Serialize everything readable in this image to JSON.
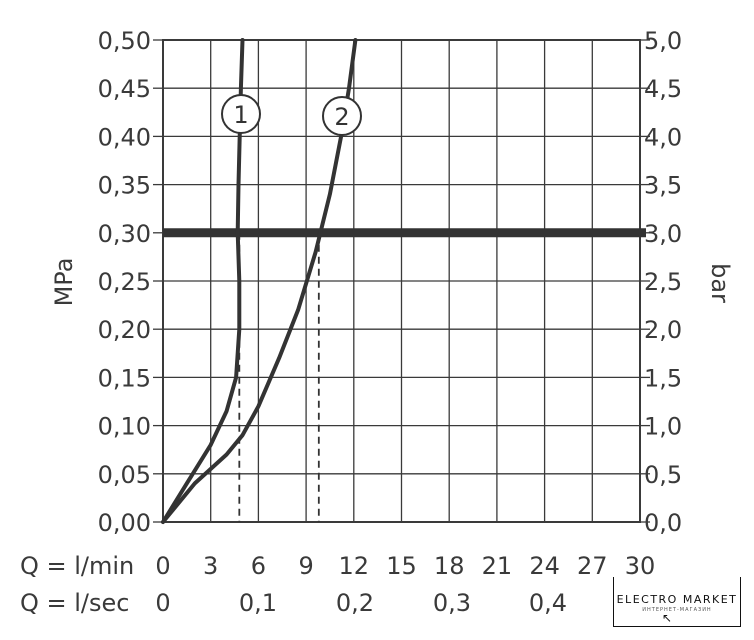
{
  "chart_data": {
    "type": "line",
    "ylabel": "MPa",
    "y2label": "bar",
    "ylim": [
      0,
      0.5
    ],
    "y_ticks": [
      "0,00",
      "0,05",
      "0,10",
      "0,15",
      "0,20",
      "0,25",
      "0,30",
      "0,35",
      "0,40",
      "0,45",
      "0,50"
    ],
    "y2_ticks": [
      "0,0",
      "0,5",
      "1,0",
      "1,5",
      "2,0",
      "2,5",
      "3,0",
      "3,5",
      "4,0",
      "4,5",
      "5,0"
    ],
    "xlim": [
      0,
      30
    ],
    "x_row1_label": "Q = l/min",
    "x_row1_ticks": [
      "0",
      "3",
      "6",
      "9",
      "12",
      "15",
      "18",
      "21",
      "24",
      "27",
      "30"
    ],
    "x_row2_label": "Q = l/sec",
    "x_row2_ticks": [
      "0",
      "0,1",
      "0,2",
      "0,3",
      "0,4"
    ],
    "reference_line": {
      "y": 0.3
    },
    "series": [
      {
        "name": "1",
        "x": [
          0,
          1.5,
          3.0,
          4.0,
          4.6,
          4.8,
          4.8,
          4.7,
          4.75,
          4.9,
          5.0
        ],
        "y": [
          0,
          0.04,
          0.08,
          0.115,
          0.15,
          0.2,
          0.25,
          0.3,
          0.35,
          0.45,
          0.5
        ],
        "marker_x_at_ref": 4.8
      },
      {
        "name": "2",
        "x": [
          0,
          2.0,
          4.0,
          5.0,
          6.0,
          7.3,
          8.5,
          9.6,
          10.5,
          11.2,
          11.7,
          12.1
        ],
        "y": [
          0,
          0.04,
          0.07,
          0.09,
          0.12,
          0.17,
          0.22,
          0.28,
          0.34,
          0.4,
          0.45,
          0.5
        ],
        "marker_x_at_ref": 9.8
      }
    ],
    "grid": true
  },
  "logo": {
    "main": "ELECTRO MARKET",
    "sub": "ИНТЕРНЕТ-МАГАЗИН"
  }
}
